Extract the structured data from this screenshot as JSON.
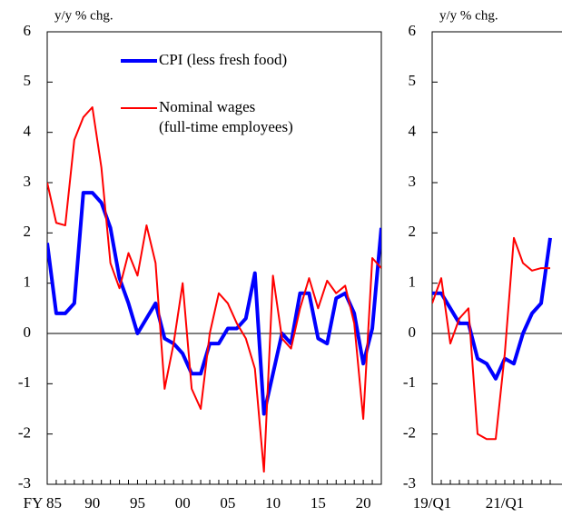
{
  "chart_data": [
    {
      "type": "line",
      "y_label": "y/y % chg.",
      "categories": [
        "FY 85",
        null,
        null,
        null,
        null,
        "90",
        null,
        null,
        null,
        null,
        "95",
        null,
        null,
        null,
        null,
        "00",
        null,
        null,
        null,
        null,
        "05",
        null,
        null,
        null,
        null,
        "10",
        null,
        null,
        null,
        null,
        "15",
        null,
        null,
        null,
        null,
        "20",
        null,
        null
      ],
      "series": [
        {
          "name": "CPI (less fresh food)",
          "color": "#0000ff",
          "width": 4,
          "values": [
            1.8,
            0.4,
            0.4,
            0.6,
            2.8,
            2.8,
            2.6,
            2.1,
            1.1,
            0.6,
            0,
            0.3,
            0.6,
            -0.1,
            -0.2,
            -0.4,
            -0.8,
            -0.8,
            -0.2,
            -0.2,
            0.1,
            0.1,
            0.3,
            1.2,
            -1.6,
            -0.8,
            0,
            -0.2,
            0.8,
            0.8,
            -0.1,
            -0.2,
            0.7,
            0.8,
            0.4,
            -0.6,
            0.1,
            2.1
          ]
        },
        {
          "name": "Nominal wages\n(full-time employees)",
          "color": "#ff0000",
          "width": 2,
          "values": [
            3.0,
            2.2,
            2.15,
            3.85,
            4.3,
            4.5,
            3.3,
            1.4,
            0.9,
            1.6,
            1.15,
            2.15,
            1.4,
            -1.1,
            -0.2,
            1.0,
            -1.1,
            -1.5,
            0,
            0.8,
            0.6,
            0.2,
            -0.1,
            -0.7,
            -2.75,
            1.15,
            -0.1,
            -0.3,
            0.5,
            1.1,
            0.5,
            1.05,
            0.8,
            0.95,
            0.2,
            -1.7,
            1.5,
            1.3
          ]
        }
      ],
      "ylim": [
        -3,
        6
      ],
      "yticks": [
        -3,
        -2,
        -1,
        0,
        1,
        2,
        3,
        4,
        5,
        6
      ],
      "legend": "upper right"
    },
    {
      "type": "line",
      "y_label": "y/y % chg.",
      "categories": [
        "19/Q1",
        null,
        null,
        null,
        null,
        null,
        null,
        null,
        "21/Q1",
        null,
        null,
        null,
        null,
        null
      ],
      "series": [
        {
          "name": "CPI (less fresh food)",
          "color": "#0000ff",
          "width": 4,
          "values": [
            0.8,
            0.8,
            0.5,
            0.2,
            0.2,
            -0.5,
            -0.6,
            -0.9,
            -0.5,
            -0.6,
            0,
            0.4,
            0.6,
            1.9
          ]
        },
        {
          "name": "Nominal wages\n(full-time employees)",
          "color": "#ff0000",
          "width": 2,
          "values": [
            0.6,
            1.1,
            -0.2,
            0.3,
            0.5,
            -2.0,
            -2.1,
            -2.1,
            -0.4,
            1.9,
            1.4,
            1.25,
            1.3,
            1.3
          ]
        }
      ],
      "ylim": [
        -3,
        6
      ],
      "yticks": [
        -3,
        -2,
        -1,
        0,
        1,
        2,
        3,
        4,
        5,
        6
      ]
    }
  ]
}
